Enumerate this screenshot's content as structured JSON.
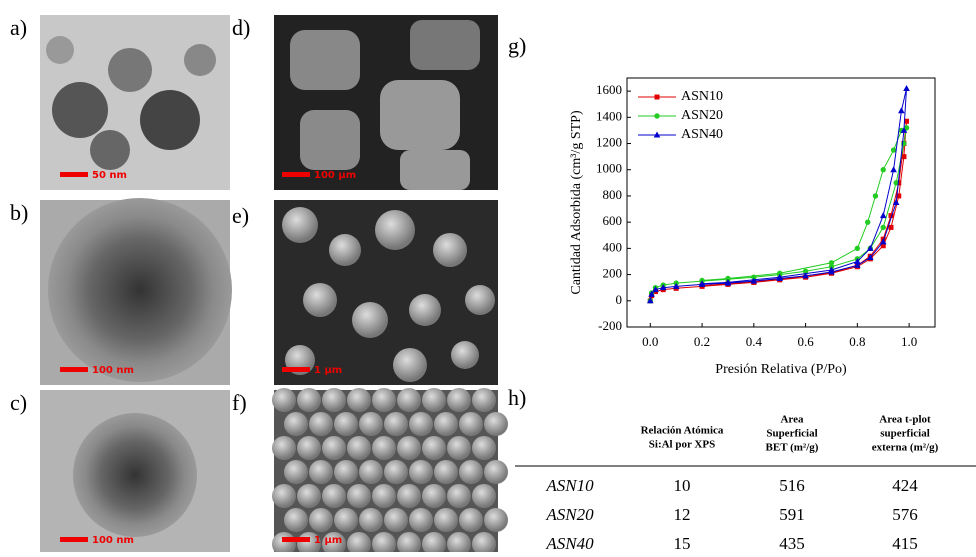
{
  "panels": [
    {
      "label": "a)",
      "scale": "50 nm"
    },
    {
      "label": "b)",
      "scale": "100 nm"
    },
    {
      "label": "c)",
      "scale": "100 nm"
    },
    {
      "label": "d)",
      "scale": "100 µm"
    },
    {
      "label": "e)",
      "scale": "1 µm"
    },
    {
      "label": "f)",
      "scale": "1 µm"
    },
    {
      "label": "g)"
    },
    {
      "label": "h)"
    }
  ],
  "chart_data": {
    "type": "line",
    "xlabel": "Presión Relativa (P/Po)",
    "ylabel": "Cantidad Adsorbida (cm³/g STP)",
    "xlim": [
      -0.09,
      1.1
    ],
    "ylim": [
      -200,
      1700
    ],
    "xticks": [
      {
        "value": 0,
        "label": "0.0"
      },
      {
        "value": 0.2,
        "label": "0.2"
      },
      {
        "value": 0.4,
        "label": "0.4"
      },
      {
        "value": 0.6,
        "label": "0.6"
      },
      {
        "value": 0.8,
        "label": "0.8"
      },
      {
        "value": 1,
        "label": "1.0"
      }
    ],
    "yticks": [
      -200,
      0,
      200,
      400,
      600,
      800,
      1000,
      1200,
      1400,
      1600
    ],
    "legend": "upper-left",
    "series": [
      {
        "name": "ASN10",
        "color": "#e00000",
        "marker": "square",
        "x": [
          0,
          0.005,
          0.02,
          0.05,
          0.1,
          0.2,
          0.3,
          0.4,
          0.5,
          0.6,
          0.7,
          0.8,
          0.85,
          0.9,
          0.93,
          0.96,
          0.98,
          0.99,
          0.98,
          0.96,
          0.93,
          0.9,
          0.85,
          0.8,
          0.7,
          0.5,
          0.3,
          0.2
        ],
        "values": [
          0,
          40,
          70,
          85,
          95,
          110,
          125,
          140,
          160,
          180,
          210,
          260,
          320,
          420,
          560,
          800,
          1100,
          1370,
          1200,
          900,
          650,
          470,
          340,
          270,
          215,
          165,
          130,
          115
        ]
      },
      {
        "name": "ASN20",
        "color": "#22cc22",
        "marker": "circle",
        "x": [
          0,
          0.005,
          0.02,
          0.05,
          0.1,
          0.2,
          0.3,
          0.4,
          0.5,
          0.6,
          0.7,
          0.8,
          0.85,
          0.9,
          0.95,
          0.98,
          0.99,
          0.97,
          0.94,
          0.9,
          0.87,
          0.84,
          0.8,
          0.7,
          0.5,
          0.3,
          0.2
        ],
        "values": [
          0,
          60,
          100,
          120,
          135,
          150,
          165,
          180,
          200,
          225,
          260,
          320,
          400,
          560,
          900,
          1200,
          1320,
          1300,
          1150,
          1000,
          800,
          600,
          400,
          290,
          210,
          170,
          155
        ]
      },
      {
        "name": "ASN40",
        "color": "#0000cc",
        "marker": "triangle",
        "x": [
          0,
          0.005,
          0.02,
          0.05,
          0.1,
          0.2,
          0.3,
          0.4,
          0.5,
          0.6,
          0.7,
          0.8,
          0.85,
          0.9,
          0.95,
          0.98,
          0.99,
          0.97,
          0.94,
          0.9,
          0.85,
          0.8,
          0.7,
          0.5,
          0.3,
          0.2
        ],
        "values": [
          0,
          50,
          85,
          100,
          110,
          125,
          135,
          150,
          170,
          190,
          220,
          270,
          330,
          450,
          750,
          1300,
          1620,
          1450,
          1000,
          650,
          400,
          300,
          235,
          180,
          140,
          130
        ]
      }
    ]
  },
  "table": {
    "columns": [
      [
        "Relación Atómica",
        "Si:Al por XPS"
      ],
      [
        "Area",
        "Superficial",
        "BET (m²/g)"
      ],
      [
        "Area t-plot",
        "superficial",
        "externa  (m²/g)"
      ]
    ],
    "rows": [
      [
        "ASN10",
        "10",
        "516",
        "424"
      ],
      [
        "ASN20",
        "12",
        "591",
        "576"
      ],
      [
        "ASN40",
        "15",
        "435",
        "415"
      ]
    ]
  }
}
